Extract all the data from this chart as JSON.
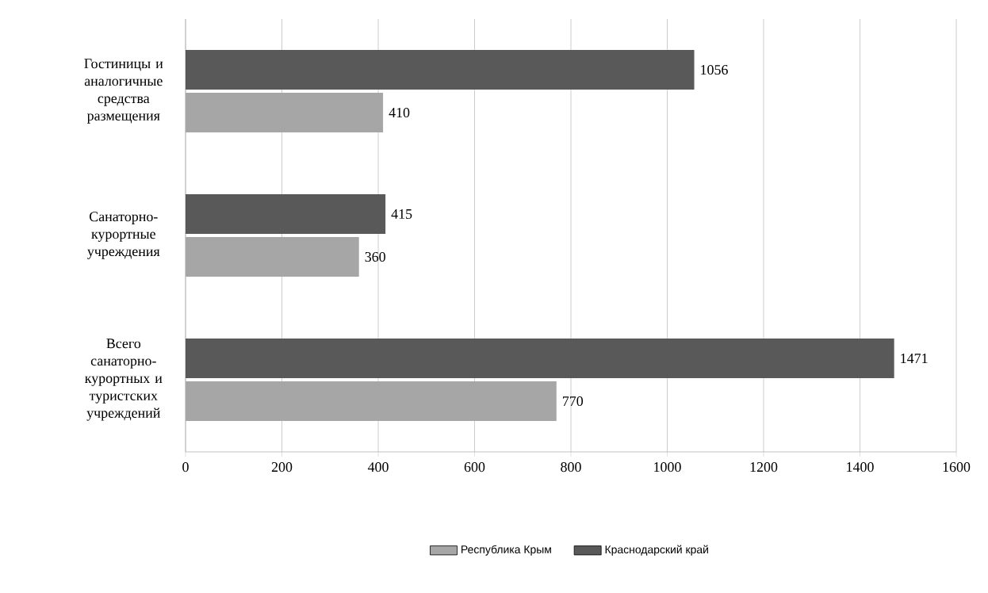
{
  "chart_data": {
    "type": "bar",
    "orientation": "horizontal",
    "categories": [
      "Гостиницы и аналогичные средства размещения",
      "Санаторно-курортные учреждения",
      "Всего санаторно-курортных и туристских учреждений"
    ],
    "series": [
      {
        "name": "Республика Крым",
        "color": "#a6a6a6",
        "values": [
          410,
          360,
          770
        ]
      },
      {
        "name": "Краснодарский край",
        "color": "#595959",
        "values": [
          1056,
          415,
          1471
        ]
      }
    ],
    "xlim": [
      0,
      1600
    ],
    "xticks": [
      0,
      200,
      400,
      600,
      800,
      1000,
      1200,
      1400,
      1600
    ],
    "grid": "x",
    "legend": "bottom",
    "data_labels": true
  }
}
